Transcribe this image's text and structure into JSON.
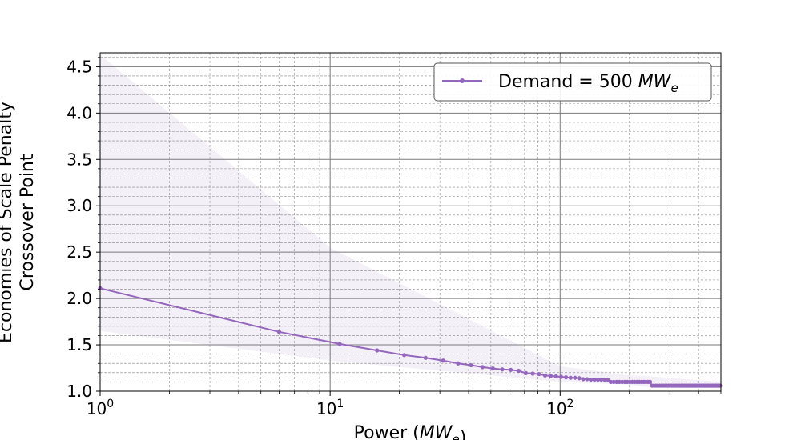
{
  "chart_data": {
    "type": "line",
    "title": "",
    "xlabel": "Power (MW_e)",
    "ylabel": "Economies of Scale Penalty\nCrossover Point",
    "x_scale": "log",
    "xlim": [
      1,
      500
    ],
    "ylim": [
      1.0,
      4.65
    ],
    "x_tick_labels": [
      "10^0",
      "10^1",
      "10^2"
    ],
    "y_tick_labels": [
      "1.0",
      "1.5",
      "2.0",
      "2.5",
      "3.0",
      "3.5",
      "4.0",
      "4.5"
    ],
    "grid": "major and minor",
    "legend_position": "top-right",
    "colors": {
      "series": "#9467bd",
      "band": "#9467bd"
    },
    "series": [
      {
        "name": "Demand = 500 MW_e",
        "marker": "dot",
        "x": [
          1,
          6,
          11,
          16,
          21,
          26,
          31,
          36,
          41,
          46,
          51,
          56,
          61,
          66,
          71,
          76,
          81,
          86,
          91,
          96,
          101,
          106,
          111,
          116,
          121,
          126,
          131,
          136,
          141,
          146,
          151,
          156,
          161,
          166,
          171,
          176,
          181,
          186,
          191,
          196,
          201,
          206,
          211,
          216,
          221,
          226,
          231,
          236,
          241,
          246,
          251,
          256,
          261,
          266,
          271,
          276,
          281,
          286,
          291,
          296,
          301,
          306,
          311,
          316,
          321,
          326,
          331,
          336,
          341,
          346,
          351,
          356,
          361,
          366,
          371,
          376,
          381,
          386,
          391,
          396,
          401,
          406,
          411,
          416,
          421,
          426,
          431,
          436,
          441,
          446,
          451,
          456,
          461,
          466,
          471,
          476,
          481,
          486,
          491,
          496
        ],
        "y": [
          2.11,
          1.64,
          1.51,
          1.44,
          1.39,
          1.36,
          1.33,
          1.3,
          1.28,
          1.26,
          1.245,
          1.235,
          1.23,
          1.22,
          1.195,
          1.19,
          1.185,
          1.17,
          1.165,
          1.16,
          1.155,
          1.15,
          1.145,
          1.145,
          1.14,
          1.13,
          1.13,
          1.125,
          1.125,
          1.125,
          1.125,
          1.125,
          1.125,
          1.1,
          1.1,
          1.1,
          1.1,
          1.1,
          1.1,
          1.1,
          1.1,
          1.1,
          1.1,
          1.1,
          1.1,
          1.1,
          1.1,
          1.1,
          1.1,
          1.1,
          1.06,
          1.06,
          1.06,
          1.06,
          1.06,
          1.06,
          1.06,
          1.06,
          1.06,
          1.06,
          1.06,
          1.06,
          1.06,
          1.06,
          1.06,
          1.06,
          1.06,
          1.06,
          1.06,
          1.06,
          1.06,
          1.06,
          1.06,
          1.06,
          1.06,
          1.06,
          1.06,
          1.06,
          1.06,
          1.06,
          1.06,
          1.06,
          1.06,
          1.06,
          1.06,
          1.06,
          1.06,
          1.06,
          1.06,
          1.06,
          1.06,
          1.06,
          1.06,
          1.06,
          1.06,
          1.06,
          1.06,
          1.06,
          1.06,
          1.06
        ]
      }
    ],
    "band": {
      "x": [
        1,
        10,
        100,
        200,
        250,
        500
      ],
      "upper": [
        4.63,
        2.55,
        1.27,
        1.17,
        1.16,
        1.1
      ],
      "lower": [
        1.65,
        1.33,
        1.1,
        1.07,
        1.04,
        1.03
      ]
    }
  }
}
